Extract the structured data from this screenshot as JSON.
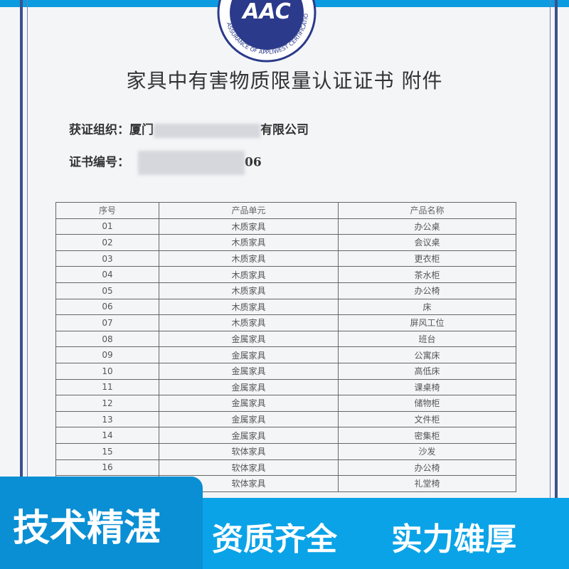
{
  "logo": {
    "text": "AAC",
    "ring_text": "ASSURANCE OF APPLIWEST CERTIFICATION",
    "color": "#2b3a8a"
  },
  "title": "家具中有害物质限量认证证书 附件",
  "org": {
    "label": "获证组织：",
    "prefix": "厦门",
    "suffix": "有限公司"
  },
  "cert_no": {
    "label": "证书编号：",
    "suffix": "06"
  },
  "table": {
    "headers": [
      "序号",
      "产品单元",
      "产品名称"
    ],
    "rows": [
      [
        "01",
        "木质家具",
        "办公桌"
      ],
      [
        "02",
        "木质家具",
        "会议桌"
      ],
      [
        "03",
        "木质家具",
        "更衣柜"
      ],
      [
        "04",
        "木质家具",
        "茶水柜"
      ],
      [
        "05",
        "木质家具",
        "办公椅"
      ],
      [
        "06",
        "木质家具",
        "床"
      ],
      [
        "07",
        "木质家具",
        "屏风工位"
      ],
      [
        "08",
        "金属家具",
        "班台"
      ],
      [
        "09",
        "金属家具",
        "公寓床"
      ],
      [
        "10",
        "金属家具",
        "高低床"
      ],
      [
        "11",
        "金属家具",
        "课桌椅"
      ],
      [
        "12",
        "金属家具",
        "储物柜"
      ],
      [
        "13",
        "金属家具",
        "文件柜"
      ],
      [
        "14",
        "金属家具",
        "密集柜"
      ],
      [
        "15",
        "软体家具",
        "沙发"
      ],
      [
        "16",
        "软体家具",
        "办公椅"
      ],
      [
        "",
        "软体家具",
        "礼堂椅"
      ]
    ]
  },
  "banner": {
    "left": "技术精湛",
    "middle": "资质齐全",
    "right": "实力雄厚",
    "color": "#0aa3e8",
    "tab_color": "#0a8fd4"
  }
}
